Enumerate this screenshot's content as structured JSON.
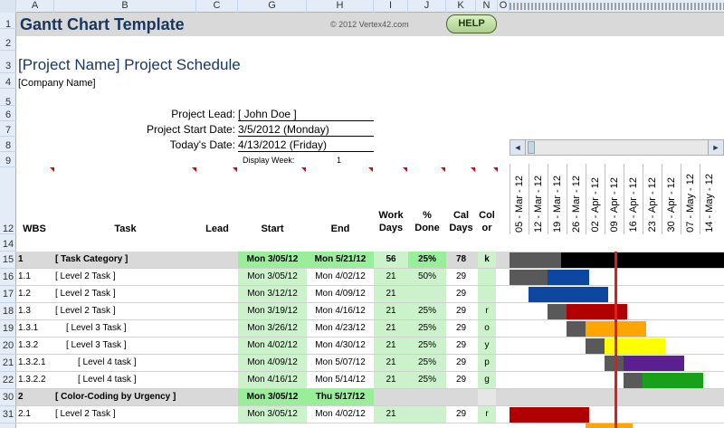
{
  "columns": [
    "A",
    "B",
    "C",
    "G",
    "H",
    "I",
    "J",
    "K",
    "N"
  ],
  "gantt_col_label": "O",
  "row_numbers": [
    "1",
    "2",
    "3",
    "4",
    "5",
    "6",
    "7",
    "8",
    "9",
    "12",
    "14",
    "15",
    "16",
    "17",
    "18",
    "19",
    "20",
    "21",
    "22",
    "30",
    "31"
  ],
  "title": "Gantt Chart Template",
  "copyright": "© 2012 Vertex42.com",
  "help_label": "HELP",
  "project_name": "[Project Name] Project Schedule",
  "company_name": "[Company Name]",
  "fields": {
    "lead_label": "Project Lead:",
    "lead_value": "[ John Doe ]",
    "start_label": "Project Start Date:",
    "start_value": "3/5/2012 (Monday)",
    "today_label": "Today's Date:",
    "today_value": "4/13/2012 (Friday)",
    "display_week_label": "Display Week:",
    "display_week_value": "1"
  },
  "scroll": {
    "left": "◄",
    "right": "►"
  },
  "weeks": [
    "05 - Mar - 12",
    "12 - Mar - 12",
    "19 - Mar - 12",
    "26 - Mar - 12",
    "02 - Apr - 12",
    "09 - Apr - 12",
    "16 - Apr - 12",
    "23 - Apr - 12",
    "30 - Apr - 12",
    "07 - May - 12",
    "14 - May - 12"
  ],
  "headers": {
    "wbs": "WBS",
    "task": "Task",
    "lead": "Lead",
    "start": "Start",
    "end": "End",
    "work_days_1": "Work",
    "work_days_2": "Days",
    "pct_done_1": "%",
    "pct_done_2": "Done",
    "cal_days_1": "Cal",
    "cal_days_2": "Days",
    "color_1": "Col",
    "color_2": "or"
  },
  "rows": [
    {
      "wbs": "1",
      "task": "[ Task Category ]",
      "start": "Mon 3/05/12",
      "end": "Mon 5/21/12",
      "work": "56",
      "pct": "25%",
      "cal": "78",
      "color": "k"
    },
    {
      "wbs": "1.1",
      "task": "[ Level 2 Task ]",
      "start": "Mon 3/05/12",
      "end": "Mon 4/02/12",
      "work": "21",
      "pct": "50%",
      "cal": "29",
      "color": ""
    },
    {
      "wbs": "1.2",
      "task": "[ Level 2 Task ]",
      "start": "Mon 3/12/12",
      "end": "Mon 4/09/12",
      "work": "21",
      "pct": "",
      "cal": "29",
      "color": ""
    },
    {
      "wbs": "1.3",
      "task": "[ Level 2 Task ]",
      "start": "Mon 3/19/12",
      "end": "Mon 4/16/12",
      "work": "21",
      "pct": "25%",
      "cal": "29",
      "color": "r"
    },
    {
      "wbs": "1.3.1",
      "task": "[ Level 3 Task ]",
      "start": "Mon 3/26/12",
      "end": "Mon 4/23/12",
      "work": "21",
      "pct": "25%",
      "cal": "29",
      "color": "o"
    },
    {
      "wbs": "1.3.2",
      "task": "[ Level 3 Task ]",
      "start": "Mon 4/02/12",
      "end": "Mon 4/30/12",
      "work": "21",
      "pct": "25%",
      "cal": "29",
      "color": "y"
    },
    {
      "wbs": "1.3.2.1",
      "task": "[ Level 4 task ]",
      "start": "Mon 4/09/12",
      "end": "Mon 5/07/12",
      "work": "21",
      "pct": "25%",
      "cal": "29",
      "color": "p"
    },
    {
      "wbs": "1.3.2.2",
      "task": "[ Level 4 task ]",
      "start": "Mon 4/16/12",
      "end": "Mon 5/14/12",
      "work": "21",
      "pct": "25%",
      "cal": "29",
      "color": "g"
    },
    {
      "wbs": "2",
      "task": "[ Color-Coding by Urgency ]",
      "start": "Mon 3/05/12",
      "end": "Thu 5/17/12",
      "work": "",
      "pct": "",
      "cal": "",
      "color": ""
    },
    {
      "wbs": "2.1",
      "task": "[ Level 2 Task ]",
      "start": "Mon 3/05/12",
      "end": "Mon 4/02/12",
      "work": "21",
      "pct": "",
      "cal": "29",
      "color": "r"
    }
  ],
  "colors": {
    "done": "#595959",
    "k": "#000000",
    "blue": "#0d47a1",
    "r": "#b00000",
    "o": "#ffa500",
    "y": "#ffff00",
    "p": "#5b1f8f",
    "g": "#18a01a",
    "today": "#e41b1b"
  }
}
